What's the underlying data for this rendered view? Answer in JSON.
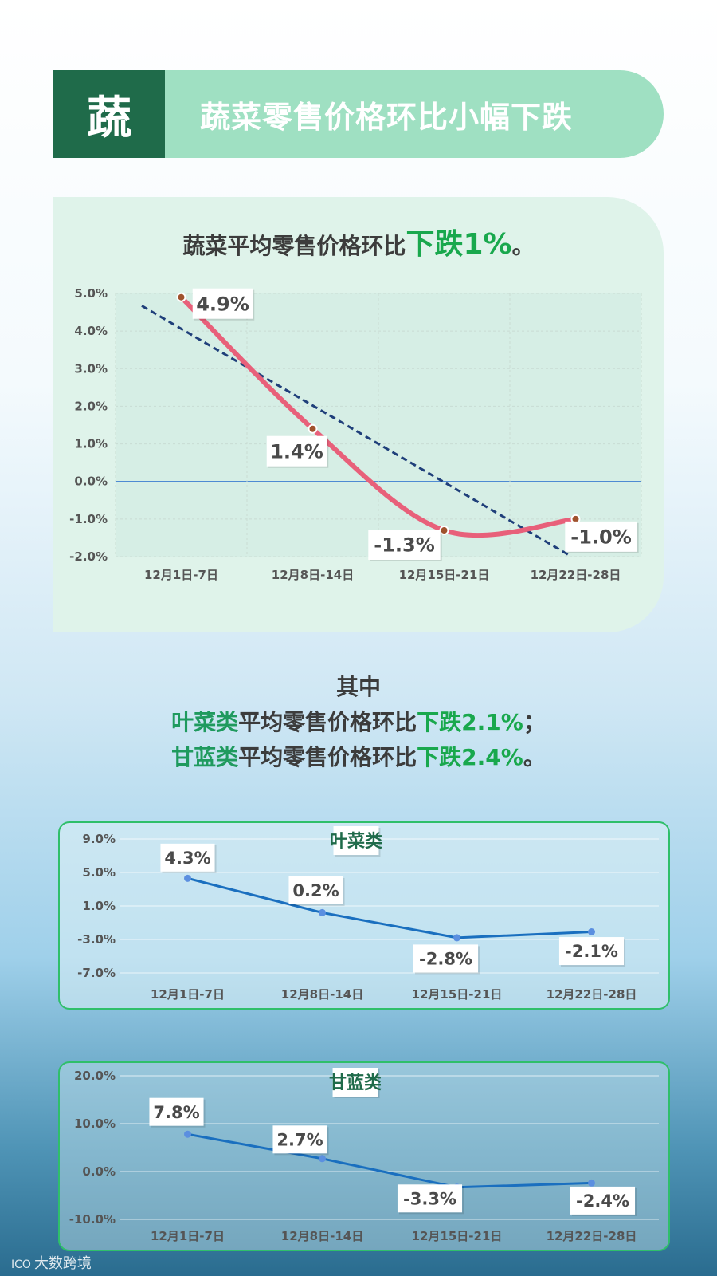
{
  "header": {
    "badge": "蔬",
    "title": "蔬菜零售价格环比小幅下跌"
  },
  "main": {
    "subtitle_prefix": "蔬菜平均零售价格环比",
    "subtitle_highlight": "下跌1%",
    "subtitle_suffix": "。"
  },
  "notes": {
    "line1": "其中",
    "leafy_name": "叶菜类",
    "leafy_mid": "平均零售价格环比",
    "leafy_value": "下跌2.1%",
    "leafy_end": "；",
    "cabbage_name": "甘蓝类",
    "cabbage_mid": "平均零售价格环比",
    "cabbage_value": "下跌2.4%",
    "cabbage_end": "。"
  },
  "footer": {
    "logo": "大数跨境",
    "mark": "ICO"
  },
  "colors": {
    "main_line": "#e8607a",
    "trend_line": "#1f3f7a",
    "small_line": "#1a6fbf",
    "accent_green": "#19a84d",
    "dark_green": "#1f6b4a"
  },
  "chart_data": [
    {
      "type": "line",
      "categories": [
        "12月1日-7日",
        "12月8日-14日",
        "12月15日-21日",
        "12月22日-28日"
      ],
      "values": [
        4.9,
        1.4,
        -1.3,
        -1.0
      ],
      "data_labels": [
        "4.9%",
        "1.4%",
        "-1.3%",
        "-1.0%"
      ],
      "trendline": true,
      "ylim": [
        -2.0,
        5.0
      ],
      "yticks": [
        5.0,
        4.0,
        3.0,
        2.0,
        1.0,
        0.0,
        -1.0,
        -2.0
      ],
      "ytick_labels": [
        "5.0%",
        "4.0%",
        "3.0%",
        "2.0%",
        "1.0%",
        "0.0%",
        "-1.0%",
        "-2.0%"
      ],
      "grid": true
    },
    {
      "type": "line",
      "title": "叶菜类",
      "categories": [
        "12月1日-7日",
        "12月8日-14日",
        "12月15日-21日",
        "12月22日-28日"
      ],
      "values": [
        4.3,
        0.2,
        -2.8,
        -2.1
      ],
      "data_labels": [
        "4.3%",
        "0.2%",
        "-2.8%",
        "-2.1%"
      ],
      "ylim": [
        -7.0,
        9.0
      ],
      "yticks": [
        9.0,
        5.0,
        1.0,
        -3.0,
        -7.0
      ],
      "ytick_labels": [
        "9.0%",
        "5.0%",
        "1.0%",
        "-3.0%",
        "-7.0%"
      ],
      "grid": true
    },
    {
      "type": "line",
      "title": "甘蓝类",
      "categories": [
        "12月1日-7日",
        "12月8日-14日",
        "12月15日-21日",
        "12月22日-28日"
      ],
      "values": [
        7.8,
        2.7,
        -3.3,
        -2.4
      ],
      "data_labels": [
        "7.8%",
        "2.7%",
        "-3.3%",
        "-2.4%"
      ],
      "ylim": [
        -10.0,
        20.0
      ],
      "yticks": [
        20.0,
        10.0,
        0.0,
        -10.0
      ],
      "ytick_labels": [
        "20.0%",
        "10.0%",
        "0.0%",
        "-10.0%"
      ],
      "grid": true
    }
  ]
}
